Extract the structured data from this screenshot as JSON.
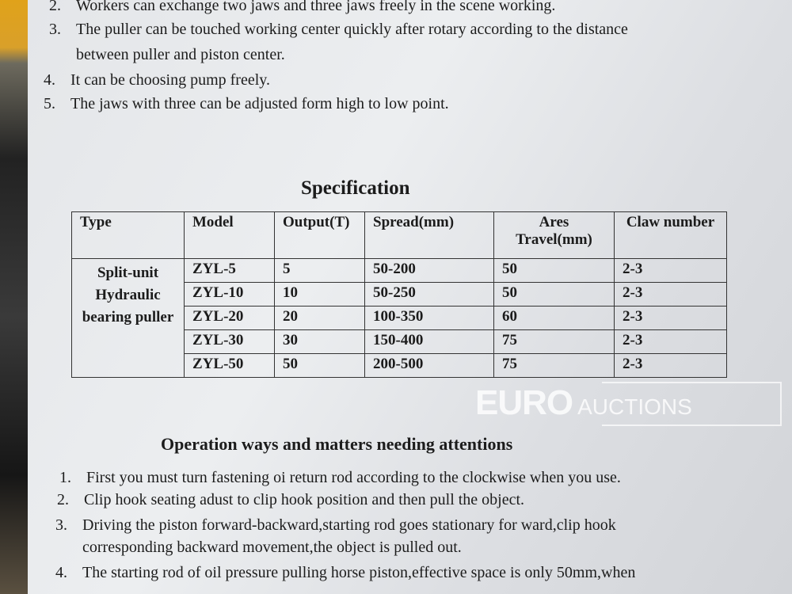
{
  "features": [
    {
      "num": "2.",
      "text": "Workers can exchange two jaws and three jaws freely in the scene working."
    },
    {
      "num": "3.",
      "text": "The puller can be touched working center quickly after rotary according to the distance"
    },
    {
      "num": "",
      "text": "between puller and piston center."
    },
    {
      "num": "4.",
      "text": "It can be choosing pump freely."
    },
    {
      "num": "5.",
      "text": "The jaws with three can be adjusted form high to low point."
    }
  ],
  "spec": {
    "title": "Specification",
    "headers": [
      "Type",
      "Model",
      "Output(T)",
      "Spread(mm)",
      "Ares Travel(mm)",
      "Claw number"
    ],
    "type": "Split-unit Hydraulic bearing puller",
    "rows": [
      [
        "ZYL-5",
        "5",
        "50-200",
        "50",
        "2-3"
      ],
      [
        "ZYL-10",
        "10",
        "50-250",
        "50",
        "2-3"
      ],
      [
        "ZYL-20",
        "20",
        "100-350",
        "60",
        "2-3"
      ],
      [
        "ZYL-30",
        "30",
        "150-400",
        "75",
        "2-3"
      ],
      [
        "ZYL-50",
        "50",
        "200-500",
        "75",
        "2-3"
      ]
    ]
  },
  "operation": {
    "title": "Operation ways and matters needing attentions",
    "items": [
      {
        "num": "1.",
        "text": "First you must turn fastening oi return rod according to the clockwise when you use."
      },
      {
        "num": "2.",
        "text": "Clip hook seating adust to clip hook position and then pull the object."
      },
      {
        "num": "3.",
        "text": "Driving the piston forward-backward,starting rod goes stationary for ward,clip hook"
      },
      {
        "num": "",
        "text": "corresponding backward movement,the object is pulled out."
      },
      {
        "num": "4.",
        "text": "The starting rod of oil pressure pulling horse piston,effective space is only 50mm,when"
      }
    ]
  },
  "watermark": {
    "brand": "EURO",
    "sub": "AUCTIONS"
  }
}
